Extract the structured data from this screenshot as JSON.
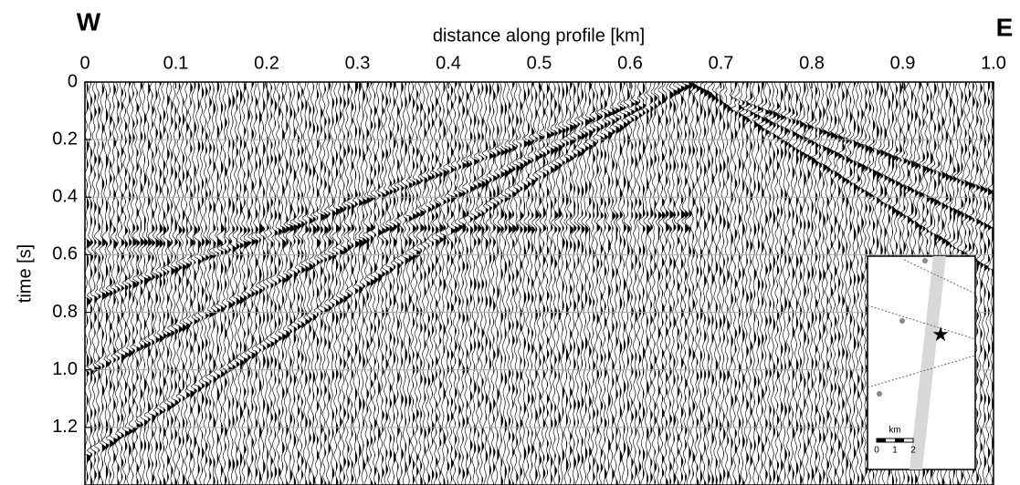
{
  "chart_data": {
    "type": "seismic-section",
    "xlabel": "distance along profile [km]",
    "ylabel": "time [s]",
    "annotations": [
      "W",
      "E"
    ],
    "xlim": [
      0,
      1
    ],
    "xticks": [
      0,
      0.1,
      0.2,
      0.3,
      0.4,
      0.5,
      0.6,
      0.7,
      0.8,
      0.9,
      {
        "value": 1,
        "label": "1.0"
      }
    ],
    "ylim": [
      0,
      1.4
    ],
    "yticks": [
      0,
      0.2,
      0.4,
      0.6,
      0.8,
      {
        "value": 1,
        "label": "1.0"
      },
      1.2
    ],
    "grid": true,
    "inset": {
      "scale_label": "km",
      "scale_ticks": [
        "0",
        "1",
        "2"
      ]
    }
  }
}
